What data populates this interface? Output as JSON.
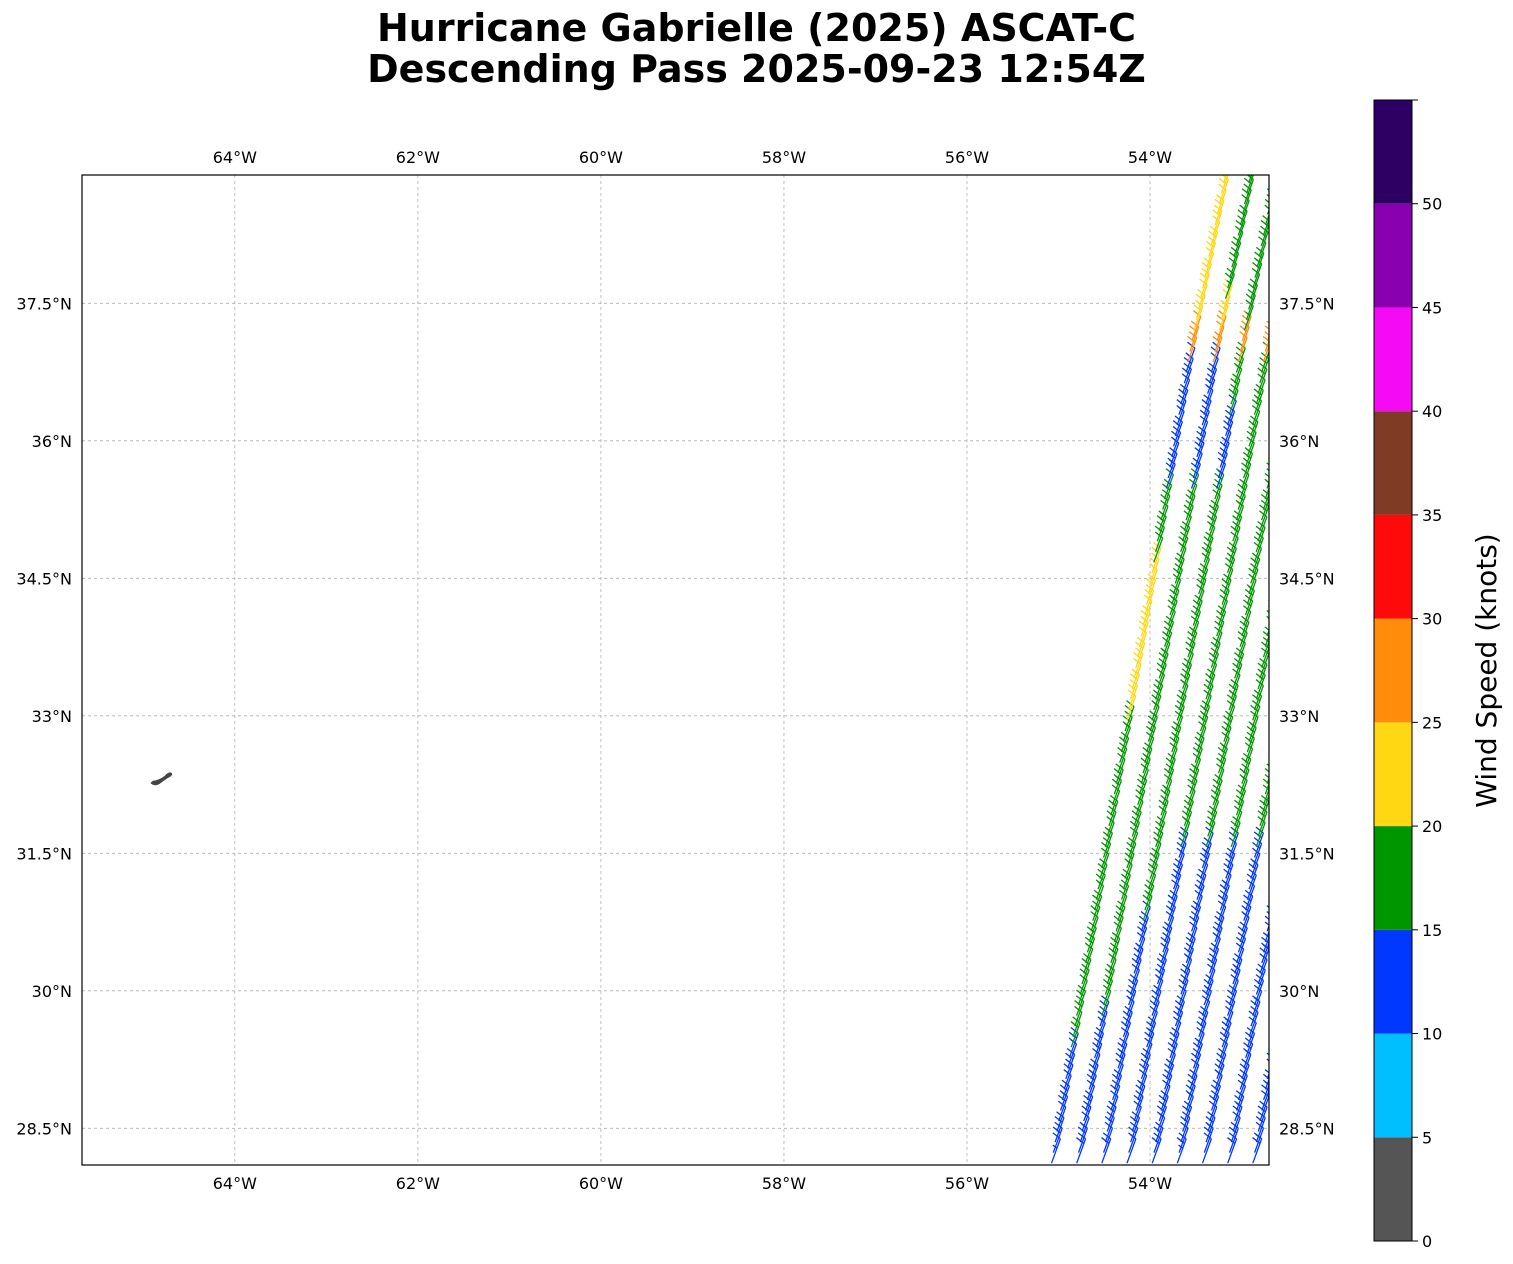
{
  "title": {
    "line1": "Hurricane Gabrielle (2025) ASCAT-C",
    "line2": "Descending Pass 2025-09-23 12:54Z"
  },
  "map": {
    "lon_range": [
      -65.67,
      -52.7
    ],
    "lat_range": [
      28.1,
      38.9
    ],
    "gridlines": true,
    "lon_ticks": [
      {
        "value": -64,
        "label": "64°W"
      },
      {
        "value": -62,
        "label": "62°W"
      },
      {
        "value": -60,
        "label": "60°W"
      },
      {
        "value": -58,
        "label": "58°W"
      },
      {
        "value": -56,
        "label": "56°W"
      },
      {
        "value": -54,
        "label": "54°W"
      }
    ],
    "lat_ticks": [
      {
        "value": 37.5,
        "label": "37.5°N"
      },
      {
        "value": 36,
        "label": "36°N"
      },
      {
        "value": 34.5,
        "label": "34.5°N"
      },
      {
        "value": 33,
        "label": "33°N"
      },
      {
        "value": 31.5,
        "label": "31.5°N"
      },
      {
        "value": 30,
        "label": "30°N"
      },
      {
        "value": 28.5,
        "label": "28.5°N"
      }
    ],
    "land_features": [
      {
        "name": "Bermuda",
        "lon": -64.8,
        "lat": 32.32,
        "color": "#444444"
      }
    ],
    "wind_barbs": {
      "swath_left_edge": [
        [
          -55.2,
          28.1
        ],
        [
          -53.7,
          36.9
        ],
        [
          -53.3,
          38.9
        ]
      ],
      "swath_right_edge": [
        -52.7,
        38.9
      ],
      "colored_regions": [
        {
          "color_key": "5-10",
          "lat_range": [
            28.1,
            29.3
          ],
          "lon_max": -54.0
        },
        {
          "color_key": "10-15",
          "lat_range": [
            28.1,
            31.5
          ],
          "note": "eastern part of swath"
        },
        {
          "color_key": "10-15",
          "lat_range": [
            35.5,
            36.9
          ],
          "note": "western-middle part"
        },
        {
          "color_key": "15-20",
          "lat_range": [
            28.1,
            36.0
          ],
          "note": "bulk of swath"
        },
        {
          "color_key": "20-25",
          "lat_range": [
            32.9,
            34.6
          ],
          "lon_range": [
            -54.3,
            -53.9
          ]
        },
        {
          "color_key": "20-25",
          "lat_range": [
            36.8,
            38.5
          ],
          "lon_range": [
            -53.8,
            -53.2
          ]
        },
        {
          "color_key": "25-30",
          "lat_range": [
            36.8,
            37.1
          ],
          "lon_range": [
            -53.9,
            -52.9
          ]
        },
        {
          "color_key": "30-35",
          "lat_range": [
            36.9,
            37.05
          ],
          "lon_range": [
            -53.45,
            -53.3
          ]
        }
      ]
    }
  },
  "colorbar": {
    "label": "Wind Speed (knots)",
    "range": [
      0,
      55
    ],
    "bins": [
      {
        "min": 0,
        "max": 5,
        "color": "#555555"
      },
      {
        "min": 5,
        "max": 10,
        "color": "#00bfff"
      },
      {
        "min": 10,
        "max": 15,
        "color": "#0038ff"
      },
      {
        "min": 15,
        "max": 20,
        "color": "#009600"
      },
      {
        "min": 20,
        "max": 25,
        "color": "#ffd713"
      },
      {
        "min": 25,
        "max": 30,
        "color": "#ff8c0a"
      },
      {
        "min": 30,
        "max": 35,
        "color": "#ff0a0a"
      },
      {
        "min": 35,
        "max": 40,
        "color": "#803b24"
      },
      {
        "min": 40,
        "max": 45,
        "color": "#f50af5"
      },
      {
        "min": 45,
        "max": 50,
        "color": "#8800b0"
      },
      {
        "min": 50,
        "max": 55,
        "color": "#2e0064"
      }
    ],
    "ticks": [
      "0",
      "5",
      "10",
      "15",
      "20",
      "25",
      "30",
      "35",
      "40",
      "45",
      "50"
    ]
  }
}
